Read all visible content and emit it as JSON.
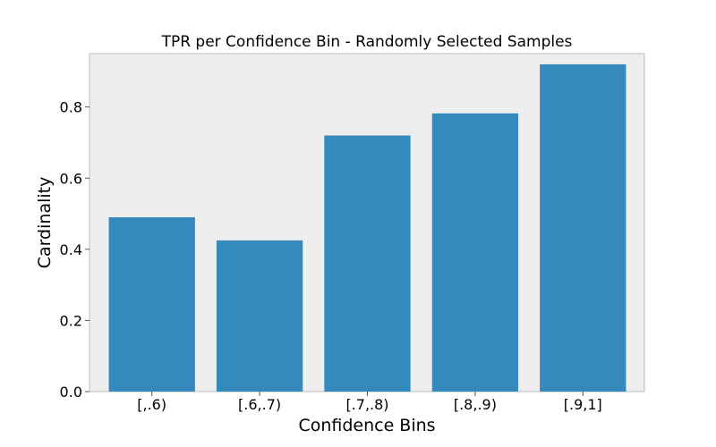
{
  "chart_data": {
    "type": "bar",
    "title": "TPR per Confidence Bin - Randomly Selected Samples",
    "xlabel": "Confidence Bins",
    "ylabel": "Cardinality",
    "categories": [
      "[,.6)",
      "[.6,.7)",
      "[.7,.8)",
      "[.8,.9)",
      "[.9,1]"
    ],
    "values": [
      0.49,
      0.425,
      0.72,
      0.782,
      0.92
    ],
    "ylim": [
      0,
      0.95
    ],
    "yticks": [
      0.0,
      0.2,
      0.4,
      0.6,
      0.8
    ],
    "ytick_labels": [
      "0.0",
      "0.2",
      "0.4",
      "0.6",
      "0.8"
    ],
    "grid": false,
    "legend": "none",
    "colors": {
      "bar": "#348ABD",
      "plot_background": "#EEEEEE",
      "frame": "#BCBCBC"
    }
  }
}
